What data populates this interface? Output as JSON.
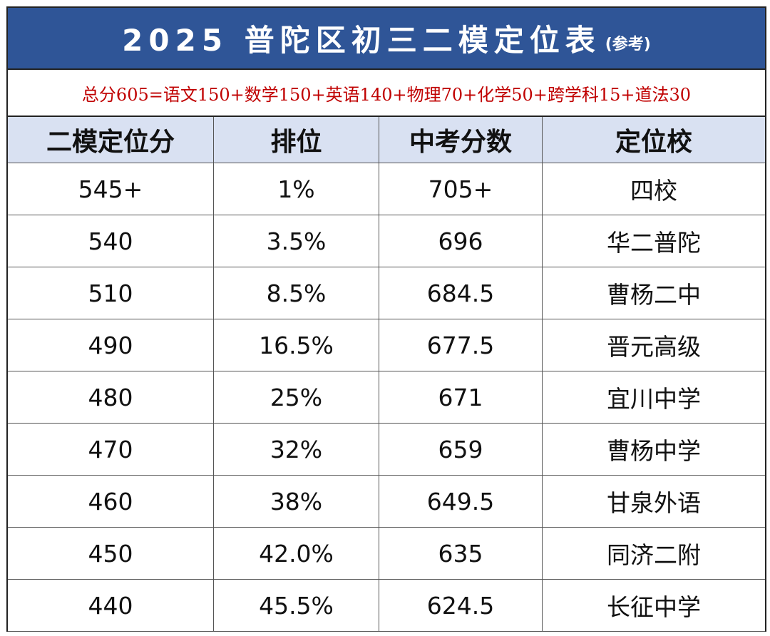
{
  "title": {
    "main": "2025 普陀区初三二模定位表",
    "note": "(参考)"
  },
  "formula": "总分605=语文150+数学150+英语140+物理70+化学50+跨学科15+道法30",
  "headers": [
    "二模定位分",
    "排位",
    "中考分数",
    "定位校"
  ],
  "rows": [
    [
      "545+",
      "1%",
      "705+",
      "四校"
    ],
    [
      "540",
      "3.5%",
      "696",
      "华二普陀"
    ],
    [
      "510",
      "8.5%",
      "684.5",
      "曹杨二中"
    ],
    [
      "490",
      "16.5%",
      "677.5",
      "晋元高级"
    ],
    [
      "480",
      "25%",
      "671",
      "宜川中学"
    ],
    [
      "470",
      "32%",
      "659",
      "曹杨中学"
    ],
    [
      "460",
      "38%",
      "649.5",
      "甘泉外语"
    ],
    [
      "450",
      "42.0%",
      "635",
      "同济二附"
    ],
    [
      "440",
      "45.5%",
      "624.5",
      "长征中学"
    ]
  ]
}
